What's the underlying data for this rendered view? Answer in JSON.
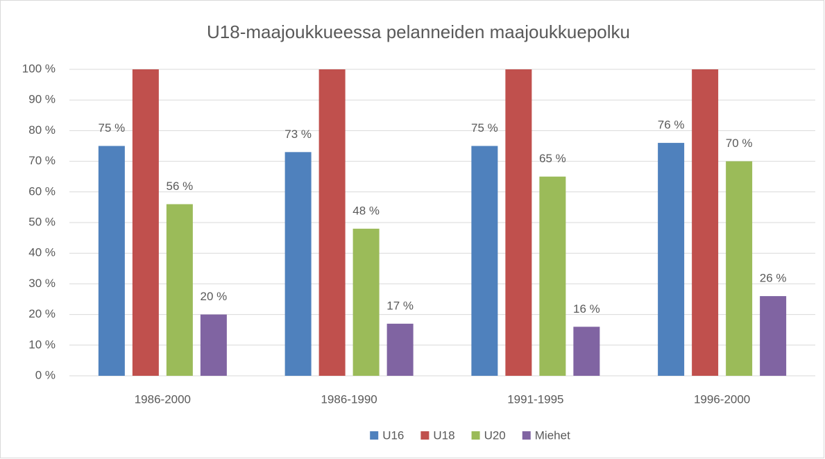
{
  "chart_data": {
    "type": "bar",
    "title": "U18-maajoukkueessa pelanneiden maajoukkuepolku",
    "categories": [
      "1986-2000",
      "1986-1990",
      "1991-1995",
      "1996-2000"
    ],
    "series": [
      {
        "name": "U16",
        "color": "#4f81bd",
        "values": [
          75,
          73,
          75,
          76
        ],
        "value_labels": [
          "75 %",
          "73 %",
          "75 %",
          "76 %"
        ]
      },
      {
        "name": "U18",
        "color": "#c0504d",
        "values": [
          100,
          100,
          100,
          100
        ]
      },
      {
        "name": "U20",
        "color": "#9bbb59",
        "values": [
          56,
          48,
          65,
          70
        ],
        "value_labels": [
          "56 %",
          "48 %",
          "65 %",
          "70 %"
        ]
      },
      {
        "name": "Miehet",
        "color": "#8064a2",
        "values": [
          20,
          17,
          16,
          26
        ],
        "value_labels": [
          "20 %",
          "17 %",
          "16 %",
          "26 %"
        ]
      }
    ],
    "ylim": [
      0,
      100
    ],
    "yticks": [
      {
        "value": 0,
        "label": "0 %"
      },
      {
        "value": 10,
        "label": "10 %"
      },
      {
        "value": 20,
        "label": "20 %"
      },
      {
        "value": 30,
        "label": "30 %"
      },
      {
        "value": 40,
        "label": "40 %"
      },
      {
        "value": 50,
        "label": "50 %"
      },
      {
        "value": 60,
        "label": "60 %"
      },
      {
        "value": 70,
        "label": "70 %"
      },
      {
        "value": 80,
        "label": "80 %"
      },
      {
        "value": 90,
        "label": "90 %"
      },
      {
        "value": 100,
        "label": "100 %"
      }
    ],
    "grid": true,
    "legend": "bottom"
  }
}
